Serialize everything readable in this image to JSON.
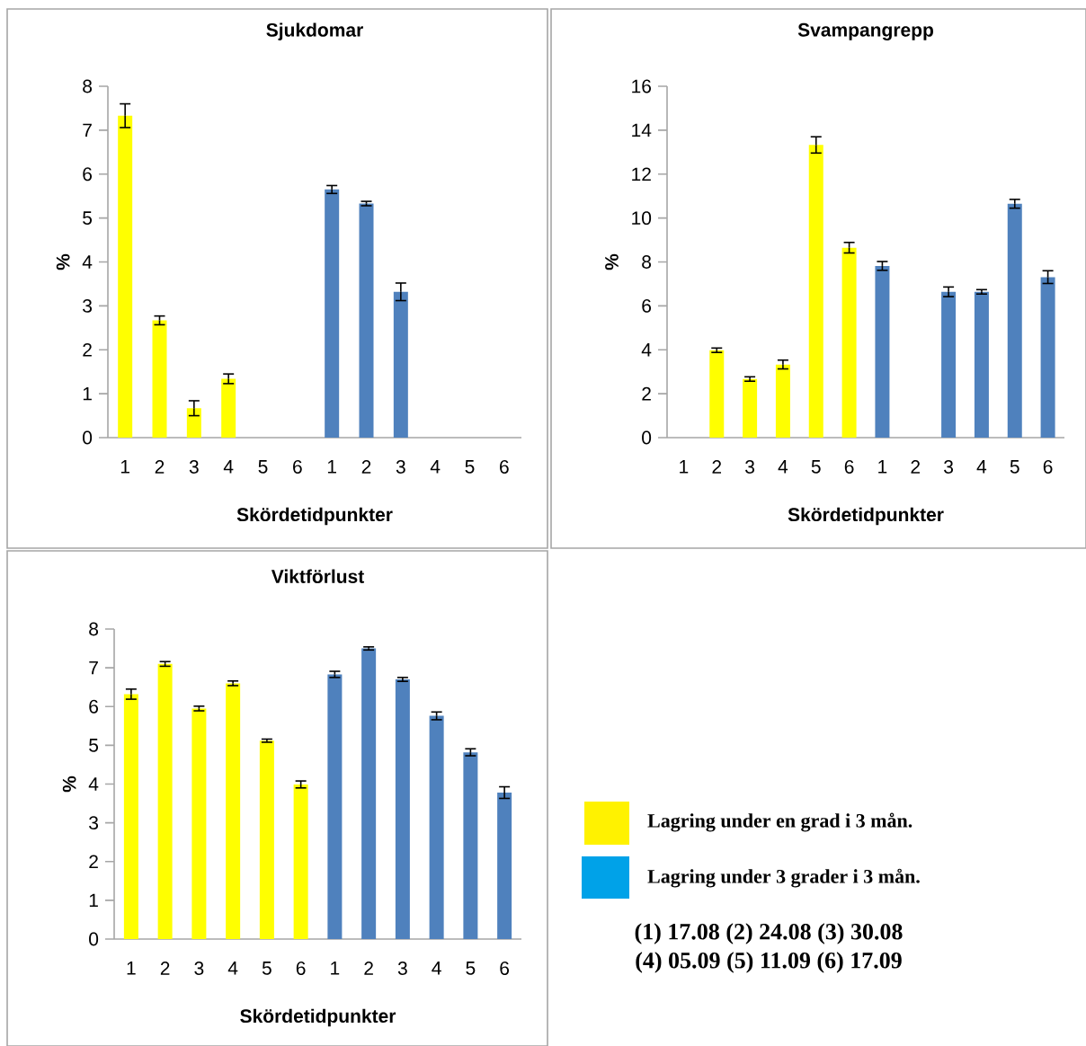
{
  "chart_data": [
    {
      "type": "bar",
      "title": "Sjukdomar",
      "xlabel": "Skördetidpunkter",
      "ylabel": "%",
      "categories": [
        "1",
        "2",
        "3",
        "4",
        "5",
        "6",
        "1",
        "2",
        "3",
        "4",
        "5",
        "6"
      ],
      "ylim": [
        0,
        8
      ],
      "yticks": [
        0,
        1,
        2,
        3,
        4,
        5,
        6,
        7,
        8
      ],
      "series": [
        {
          "color": "#ffff00",
          "values": [
            7.33,
            2.67,
            0.67,
            1.34,
            null,
            null,
            null,
            null,
            null,
            null,
            null,
            null
          ],
          "errors": [
            0.27,
            0.1,
            0.17,
            0.11,
            null,
            null,
            null,
            null,
            null,
            null,
            null,
            null
          ]
        },
        {
          "color": "#4f81bd",
          "values": [
            null,
            null,
            null,
            null,
            null,
            null,
            5.65,
            5.33,
            3.32,
            null,
            null,
            null
          ],
          "errors": [
            null,
            null,
            null,
            null,
            null,
            null,
            0.09,
            0.05,
            0.2,
            null,
            null,
            null
          ]
        }
      ]
    },
    {
      "type": "bar",
      "title": "Svampangrepp",
      "xlabel": "Skördetidpunkter",
      "ylabel": "%",
      "categories": [
        "1",
        "2",
        "3",
        "4",
        "5",
        "6",
        "1",
        "2",
        "3",
        "4",
        "5",
        "6"
      ],
      "ylim": [
        0,
        16
      ],
      "yticks": [
        0,
        2,
        4,
        6,
        8,
        10,
        12,
        14,
        16
      ],
      "series": [
        {
          "color": "#ffff00",
          "values": [
            null,
            3.98,
            2.67,
            3.33,
            13.33,
            8.65,
            null,
            null,
            null,
            null,
            null,
            null
          ],
          "errors": [
            null,
            0.1,
            0.1,
            0.2,
            0.37,
            0.24,
            null,
            null,
            null,
            null,
            null,
            null
          ]
        },
        {
          "color": "#4f81bd",
          "values": [
            null,
            null,
            null,
            null,
            null,
            null,
            7.82,
            null,
            6.64,
            6.64,
            10.65,
            7.31
          ],
          "errors": [
            null,
            null,
            null,
            null,
            null,
            null,
            0.2,
            null,
            0.22,
            0.1,
            0.2,
            0.29
          ]
        }
      ]
    },
    {
      "type": "bar",
      "title": "Viktförlust",
      "xlabel": "Skördetidpunkter",
      "ylabel": "%",
      "categories": [
        "1",
        "2",
        "3",
        "4",
        "5",
        "6",
        "1",
        "2",
        "3",
        "4",
        "5",
        "6"
      ],
      "ylim": [
        0,
        8
      ],
      "yticks": [
        0,
        1,
        2,
        3,
        4,
        5,
        6,
        7,
        8
      ],
      "series": [
        {
          "color": "#ffff00",
          "values": [
            6.32,
            7.1,
            5.95,
            6.6,
            5.12,
            3.99,
            null,
            null,
            null,
            null,
            null,
            null
          ],
          "errors": [
            0.13,
            0.06,
            0.06,
            0.06,
            0.04,
            0.09,
            null,
            null,
            null,
            null,
            null,
            null
          ]
        },
        {
          "color": "#4f81bd",
          "values": [
            null,
            null,
            null,
            null,
            null,
            null,
            6.83,
            7.5,
            6.7,
            5.76,
            4.82,
            3.78
          ],
          "errors": [
            null,
            null,
            null,
            null,
            null,
            null,
            0.08,
            0.04,
            0.05,
            0.1,
            0.09,
            0.15
          ]
        }
      ]
    },
    {
      "type": "other",
      "colors": [
        "#fff200",
        "#00a2e8"
      ],
      "annotations": [
        "Lagring under en grad  i 3 mån.",
        "Lagring under 3 grader i 3 mån.",
        "(1) 17.08 (2) 24.08 (3) 30.08",
        "(4) 05.09 (5) 11.09 (6) 17.09"
      ]
    }
  ]
}
